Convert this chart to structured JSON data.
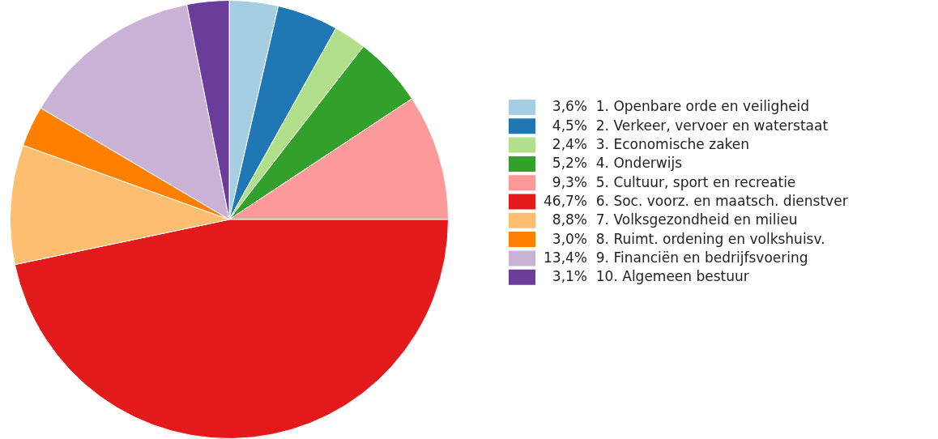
{
  "chart_data": {
    "type": "pie",
    "categories": [
      "1. Openbare orde en veiligheid",
      "2. Verkeer, vervoer en waterstaat",
      "3. Economische zaken",
      "4. Onderwijs",
      "5. Cultuur, sport en recreatie",
      "6. Soc. voorz. en maatsch. dienstver",
      "7. Volksgezondheid en milieu",
      "8. Ruimt. ordening en volkshuisv.",
      "9. Financiën en bedrijfsvoering",
      "10. Algemeen bestuur"
    ],
    "values": [
      3.6,
      4.5,
      2.4,
      5.2,
      9.3,
      46.7,
      8.8,
      3.0,
      13.4,
      3.1
    ],
    "value_labels": [
      "3,6%",
      "4,5%",
      "2,4%",
      "5,2%",
      "9,3%",
      "46,7%",
      "8,8%",
      "3,0%",
      "13,4%",
      "3,1%"
    ],
    "colors": [
      "#a6cee3",
      "#1f78b4",
      "#b2df8a",
      "#33a02c",
      "#fb9a99",
      "#e31a1c",
      "#fdbf6f",
      "#ff7f00",
      "#cab2d6",
      "#6a3d9a"
    ],
    "legend": "right"
  }
}
